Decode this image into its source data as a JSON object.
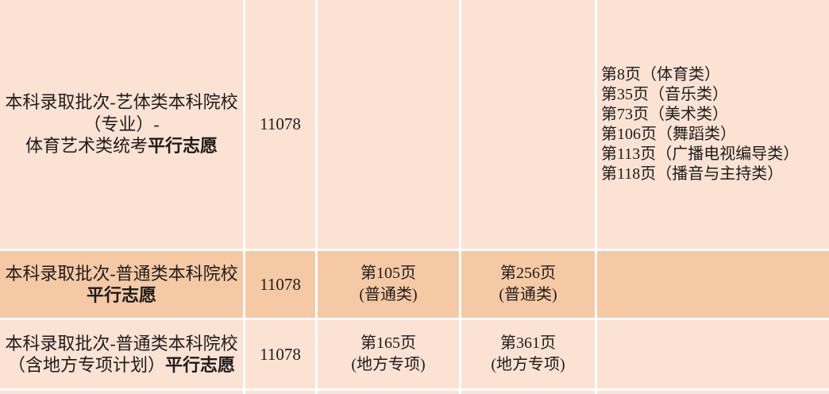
{
  "colors": {
    "row_light": "#fce2d3",
    "row_dark": "#f6c9a5",
    "grid_line": "#ffffff",
    "text": "#1c1c1c"
  },
  "rows": [
    {
      "name_lines": [
        "本科录取批次-艺体类本科院校",
        "（专业）-",
        "体育艺术类统考"
      ],
      "name_bold": "平行志愿",
      "code": "11078",
      "pages": [
        "第8页（体育类）",
        "第35页（音乐类）",
        "第73页（美术类）",
        "第106页（舞蹈类）",
        "第113页（广播电视编导类）",
        "第118页（播音与主持类）"
      ]
    },
    {
      "name_lines": [
        "本科录取批次-普通类本科院校"
      ],
      "name_bold": "平行志愿",
      "code": "11078",
      "col3": {
        "page": "第105页",
        "note": "(普通类)"
      },
      "col4": {
        "page": "第256页",
        "note": "(普通类)"
      }
    },
    {
      "name_lines": [
        "本科录取批次-普通类本科院校",
        "（含地方专项计划）"
      ],
      "name_bold": "平行志愿",
      "code": "11078",
      "col3": {
        "page": "第165页",
        "note": "(地方专项)"
      },
      "col4": {
        "page": "第361页",
        "note": "(地方专项)"
      }
    }
  ]
}
